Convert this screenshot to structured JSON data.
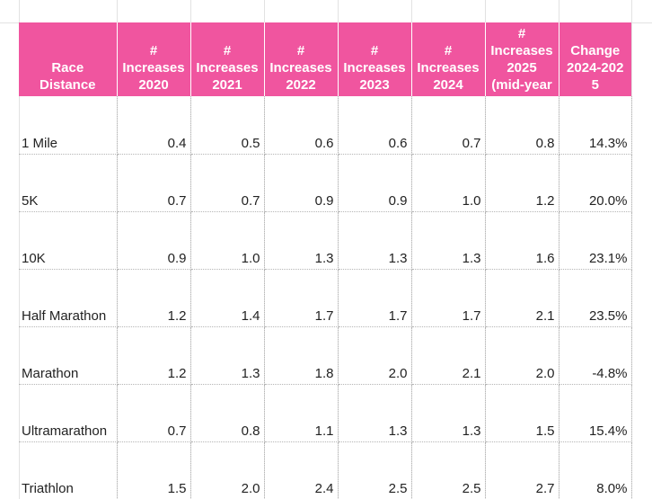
{
  "table": {
    "headers": [
      "Race\nDistance",
      "#\nIncreases\n2020",
      "#\nIncreases\n2021",
      "#\nIncreases\n2022",
      "#\nIncreases\n2023",
      "#\nIncreases\n2024",
      "#\nIncreases\n2025\n(mid-year",
      "Change\n2024-202\n5"
    ],
    "rows": [
      [
        "1 Mile",
        "0.4",
        "0.5",
        "0.6",
        "0.6",
        "0.7",
        "0.8",
        "14.3%"
      ],
      [
        "5K",
        "0.7",
        "0.7",
        "0.9",
        "0.9",
        "1.0",
        "1.2",
        "20.0%"
      ],
      [
        "10K",
        "0.9",
        "1.0",
        "1.3",
        "1.3",
        "1.3",
        "1.6",
        "23.1%"
      ],
      [
        "Half Marathon",
        "1.2",
        "1.4",
        "1.7",
        "1.7",
        "1.7",
        "2.1",
        "23.5%"
      ],
      [
        "Marathon",
        "1.2",
        "1.3",
        "1.8",
        "2.0",
        "2.1",
        "2.0",
        "-4.8%"
      ],
      [
        "Ultramarathon",
        "0.7",
        "0.8",
        "1.1",
        "1.3",
        "1.3",
        "1.5",
        "15.4%"
      ],
      [
        "Triathlon",
        "1.5",
        "2.0",
        "2.4",
        "2.5",
        "2.5",
        "2.7",
        "8.0%"
      ]
    ]
  },
  "colors": {
    "header_background": "#f0559f",
    "header_text": "#ffffff",
    "cell_text": "#222222"
  }
}
